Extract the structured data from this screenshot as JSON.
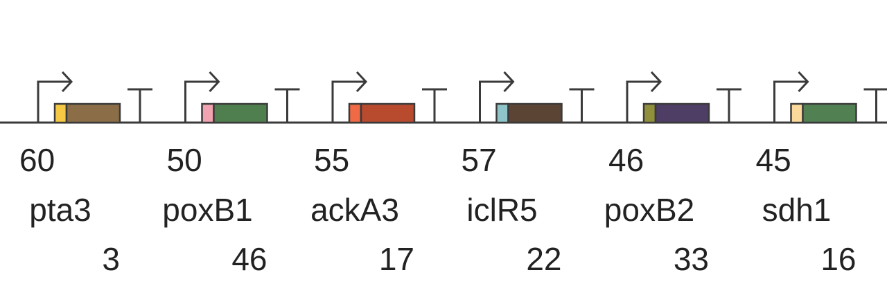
{
  "colors": {
    "line": "#3a3a3a",
    "text": "#222222"
  },
  "units": [
    {
      "top_value": "60",
      "name": "pta3",
      "bottom_value": "3",
      "promoter_color": "#f6c945",
      "gene_color": "#8b6d48"
    },
    {
      "top_value": "50",
      "name": "poxB1",
      "bottom_value": "46",
      "promoter_color": "#f2a3b1",
      "gene_color": "#4f7f4e"
    },
    {
      "top_value": "55",
      "name": "ackA3",
      "bottom_value": "17",
      "promoter_color": "#ef6a45",
      "gene_color": "#b84a2e"
    },
    {
      "top_value": "57",
      "name": "iclR5",
      "bottom_value": "22",
      "promoter_color": "#8fc5c8",
      "gene_color": "#5b4433"
    },
    {
      "top_value": "46",
      "name": "poxB2",
      "bottom_value": "33",
      "promoter_color": "#8f8f3c",
      "gene_color": "#4e3d64"
    },
    {
      "top_value": "45",
      "name": "sdh1",
      "bottom_value": "16",
      "promoter_color": "#fbd99a",
      "gene_color": "#518052"
    }
  ]
}
